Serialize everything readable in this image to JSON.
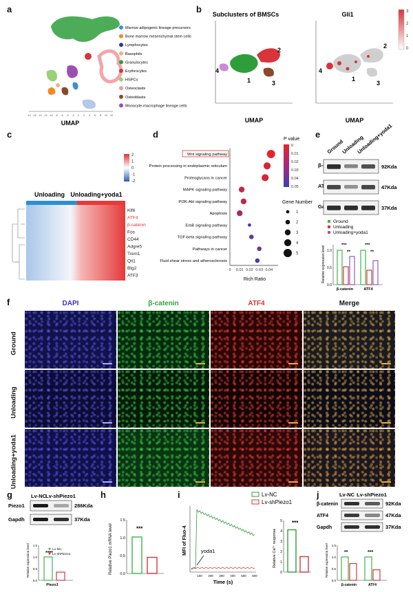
{
  "panel_letters": [
    "a",
    "b",
    "c",
    "d",
    "e",
    "f",
    "g",
    "h",
    "i",
    "j"
  ],
  "a": {
    "xlabel": "UMAP",
    "legend": [
      {
        "name": "Marrow adipogenic lineage precursors",
        "color": "#3a8fd6"
      },
      {
        "name": "Bone marrow mesenchymal stem cells",
        "color": "#f08a24"
      },
      {
        "name": "Lymphocytes",
        "color": "#2b3a8f"
      },
      {
        "name": "Basophils",
        "color": "#f0b27a"
      },
      {
        "name": "Granulocytes",
        "color": "#2e9e3a"
      },
      {
        "name": "Erythrocytes",
        "color": "#d9343a"
      },
      {
        "name": "HSPCs",
        "color": "#9ad07a"
      },
      {
        "name": "Osteoclasts",
        "color": "#f49aa0"
      },
      {
        "name": "Osteoblasts",
        "color": "#8a4a2a"
      },
      {
        "name": "Monocyte-macrophage lineage cells",
        "color": "#9b4fb5"
      }
    ],
    "xticks": [
      "-10",
      "-16",
      "-14",
      "-12",
      "-10",
      "-8",
      "-6",
      "-4",
      "-2",
      "0",
      "2",
      "4",
      "6",
      "8",
      "10",
      "12"
    ]
  },
  "b": {
    "title_left": "Subclusters of BMSCs",
    "title_right": "Gli1",
    "xlabel": "UMAP",
    "cluster_labels": [
      "1",
      "2",
      "3",
      "4"
    ],
    "colorbar_ticks": [
      "3",
      "2",
      "1",
      "0"
    ]
  },
  "c": {
    "group1": "Unloading",
    "group2": "Unloading+yoda1",
    "genes": [
      "Klf6",
      "ATF4",
      "β-catenin",
      "Fos",
      "CD44",
      "Adgre5",
      "Trem1",
      "Qit1",
      "Btg2",
      "ATF3"
    ],
    "highlight_genes": [
      "ATF4",
      "β-catenin"
    ],
    "scale": [
      "2",
      "1",
      "0",
      "-1",
      "-2"
    ]
  },
  "d": {
    "pathways": [
      {
        "name": "Wnt signaling pathway",
        "rich": 0.042,
        "p": 0.0,
        "size": 5
      },
      {
        "name": "Protein processing in endoplasmic reticulum",
        "rich": 0.038,
        "p": 0.003,
        "size": 4
      },
      {
        "name": "Proteoglycans in cancer",
        "rich": 0.036,
        "p": 0.005,
        "size": 4
      },
      {
        "name": "MAPK signaling pathway",
        "rich": 0.012,
        "p": 0.01,
        "size": 3
      },
      {
        "name": "PI3K-Akt signaling pathway",
        "rich": 0.014,
        "p": 0.012,
        "size": 3
      },
      {
        "name": "Apoptosis",
        "rich": 0.01,
        "p": 0.02,
        "size": 3
      },
      {
        "name": "ErbB signaling pathway",
        "rich": 0.02,
        "p": 0.05,
        "size": 1
      },
      {
        "name": "TGF-beta signaling pathway",
        "rich": 0.022,
        "p": 0.04,
        "size": 2
      },
      {
        "name": "Pathways in cancer",
        "rich": 0.03,
        "p": 0.035,
        "size": 2
      },
      {
        "name": "Fluid shear stress and atherosclerosis",
        "rich": 0.028,
        "p": 0.045,
        "size": 2
      }
    ],
    "highlight": "Wnt signaling pathway",
    "xlabel": "Rich Ratio",
    "xticks": [
      "0",
      "0.01",
      "0.02",
      "0.03",
      "0.04"
    ],
    "pvalue_title": "P value",
    "pvalue_ticks": [
      "0",
      "0.01",
      "0.02",
      "0.03",
      "0.04",
      "0.05"
    ],
    "size_title": "Gene Number",
    "size_ticks": [
      "1",
      "2",
      "3",
      "4",
      "5"
    ]
  },
  "e": {
    "columns": [
      "Ground",
      "Unloading",
      "Unloading+yoda1"
    ],
    "blots": [
      {
        "label": "β-catenin",
        "kda": "92Kda"
      },
      {
        "label": "ATF4",
        "kda": "47Kda"
      },
      {
        "label": "Gapdh",
        "kda": "37Kda"
      }
    ],
    "legend": [
      {
        "name": "Ground",
        "color": "#3bb54a"
      },
      {
        "name": "Unloading",
        "color": "#d9343a"
      },
      {
        "name": "Unloading+yoda1",
        "color": "#8a5cc2"
      }
    ],
    "ylabel": "Relative expression level",
    "groups": [
      "β-catenin",
      "ATF4"
    ],
    "values": [
      [
        1.0,
        0.52,
        0.82
      ],
      [
        1.0,
        0.42,
        0.7
      ]
    ],
    "sig": [
      [
        "***",
        "**"
      ],
      [
        "***",
        "**"
      ]
    ],
    "yticks": [
      "0.0",
      "0.5",
      "1.0"
    ]
  },
  "f": {
    "columns": [
      "DAPI",
      "β-catenin",
      "ATF4",
      "Merge"
    ],
    "column_colors": [
      "#3232c8",
      "#2ea53a",
      "#d9343a",
      "#111111"
    ],
    "rows": [
      "Ground",
      "Unloading",
      "Unloading+yoda1"
    ]
  },
  "g": {
    "blots": [
      {
        "label": "Piezo1",
        "kda": "286Kda"
      },
      {
        "label": "Gapdh",
        "kda": "37Kda"
      }
    ],
    "columns": [
      "Lv-NC",
      "Lv-shPiezo1"
    ],
    "legend": [
      "Lv-NC",
      "Lv-shPiezo1"
    ],
    "ylabel": "Relative expression level",
    "xlabel": "Piezo1",
    "values": [
      1.0,
      0.35
    ],
    "sig": "****",
    "yticks": [
      "0.0",
      "0.5",
      "1.0",
      "1.5"
    ]
  },
  "h": {
    "ylabel": "Relative Piezo1 mRNA level",
    "values": [
      1.02,
      0.45
    ],
    "sig": "***",
    "yticks": [
      "0.0",
      "0.5",
      "1.0",
      "1.5"
    ]
  },
  "i": {
    "legend": [
      {
        "name": "Lv-NC",
        "color": "#2e9e3a"
      },
      {
        "name": "Lv-shPiezo1",
        "color": "#d9343a"
      }
    ],
    "ylabel": "MFI of Fluo-4",
    "xlabel": "Time (s)",
    "xticks": [
      "100",
      "200",
      "300",
      "400",
      "500",
      "600"
    ],
    "arrow_label": "yoda1",
    "bar_ylabel": "Relative Ca²⁺ response",
    "bar_values": [
      4.1,
      1.5
    ],
    "bar_yticks": [
      "0",
      "1",
      "2",
      "3",
      "4",
      "5"
    ],
    "sig": "***"
  },
  "j": {
    "columns": [
      "Lv-NC",
      "Lv-shPiezo1"
    ],
    "blots": [
      {
        "label": "β-catenin",
        "kda": "92Kda"
      },
      {
        "label": "ATF4",
        "kda": "47Kda"
      },
      {
        "label": "Gapdh",
        "kda": "37Kda"
      }
    ],
    "ylabel": "Relative expression level",
    "groups": [
      "β-catenin",
      "ATF4"
    ],
    "values": [
      [
        1.0,
        0.72
      ],
      [
        1.0,
        0.45
      ]
    ],
    "sig": [
      "**",
      "***"
    ],
    "yticks": [
      "0.0",
      "0.5",
      "1.0",
      "1.5"
    ]
  }
}
